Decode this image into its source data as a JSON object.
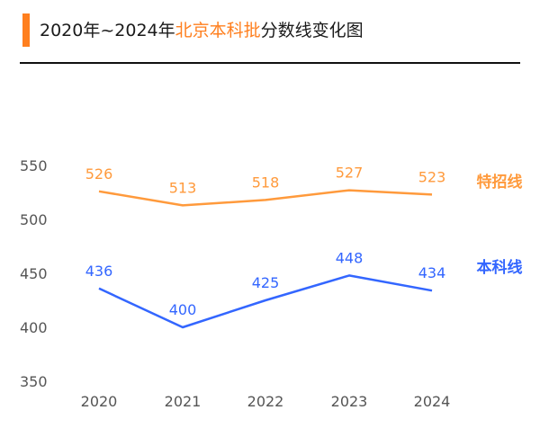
{
  "title": {
    "prefix": "2020年~2024年",
    "highlight": "北京本科批",
    "suffix": "分数线变化图"
  },
  "colors": {
    "accent": "#FF7F1E",
    "tezhao": "#FF9A3C",
    "benke": "#3366FF"
  },
  "chart_data": {
    "type": "line",
    "categories": [
      "2020",
      "2021",
      "2022",
      "2023",
      "2024"
    ],
    "series": [
      {
        "name": "特招线",
        "values": [
          526,
          513,
          518,
          527,
          523
        ],
        "color": "#FF9A3C"
      },
      {
        "name": "本科线",
        "values": [
          436,
          400,
          425,
          448,
          434
        ],
        "color": "#3366FF"
      }
    ],
    "yticks": [
      "550",
      "500",
      "450",
      "400",
      "350"
    ],
    "ylim": [
      350,
      550
    ],
    "grid": false,
    "legend": "right"
  }
}
